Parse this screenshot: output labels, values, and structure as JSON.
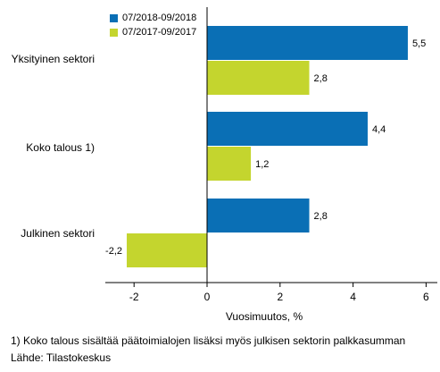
{
  "chart_data": {
    "type": "bar",
    "orientation": "horizontal",
    "categories": [
      "Yksityinen sektori",
      "Koko talous 1)",
      "Julkinen sektori"
    ],
    "series": [
      {
        "name": "07/2018-09/2018",
        "color": "#0a6fb5",
        "values": [
          5.5,
          4.4,
          2.8
        ],
        "labels": [
          "5,5",
          "4,4",
          "2,8"
        ]
      },
      {
        "name": "07/2017-09/2017",
        "color": "#c4d52e",
        "values": [
          2.8,
          1.2,
          -2.2
        ],
        "labels": [
          "2,8",
          "1,2",
          "-2,2"
        ]
      }
    ],
    "xlim": [
      -3,
      6
    ],
    "xticks": [
      -2,
      0,
      2,
      4,
      6
    ],
    "xtick_labels": [
      "-2",
      "0",
      "2",
      "4",
      "6"
    ],
    "xlabel": "Vuosimuutos, %",
    "legend_position": "top-left",
    "grid": false
  },
  "footnote": "1) Koko talous sisältää päätoimialojen lisäksi myös julkisen sektorin palkkasumman",
  "source": "Lähde: Tilastokeskus"
}
